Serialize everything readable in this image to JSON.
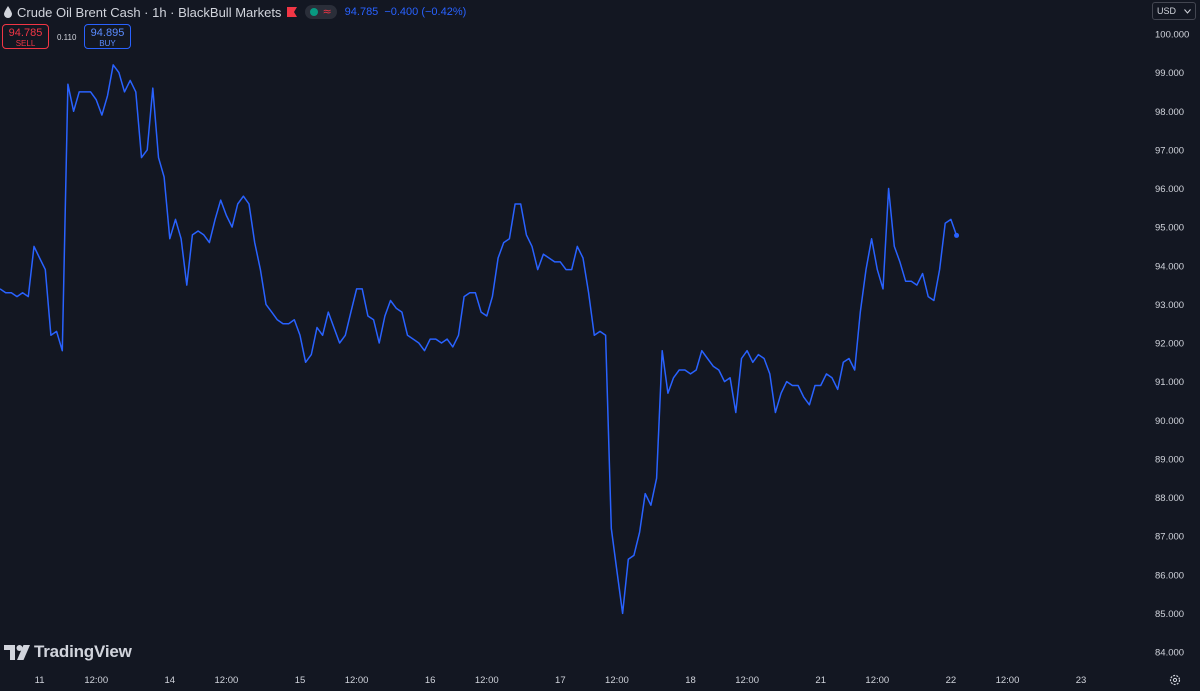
{
  "header": {
    "symbol_title": "Crude Oil Brent Cash · 1h · BlackBull Markets",
    "last_price": "94.785",
    "change": "−0.400 (−0.42%)",
    "icons": [
      "drop-icon",
      "flag-icon",
      "status-dot",
      "wave-icon"
    ]
  },
  "trade": {
    "sell_price": "94.785",
    "sell_label": "SELL",
    "spread": "0.110",
    "buy_price": "94.895",
    "buy_label": "BUY"
  },
  "currency_select": {
    "value": "USD"
  },
  "branding": {
    "logo_text": "TradingView"
  },
  "colors": {
    "background": "#131722",
    "line": "#2962ff",
    "sell": "#f23645",
    "text": "#d1d4dc",
    "axis_text": "#d1d4dc"
  },
  "chart_data": {
    "type": "line",
    "title": "Crude Oil Brent Cash · 1h · BlackBull Markets",
    "xlabel": "",
    "ylabel": "",
    "ylim": [
      83.7,
      100.2
    ],
    "grid": false,
    "y_axis_side": "right",
    "y_ticks": [
      100,
      99,
      98,
      97,
      96,
      95,
      94,
      93,
      92,
      91,
      90,
      89,
      88,
      87,
      86,
      85,
      84
    ],
    "y_tick_labels": [
      "100.000",
      "99.000",
      "98.000",
      "97.000",
      "96.000",
      "95.000",
      "94.000",
      "93.000",
      "92.000",
      "91.000",
      "90.000",
      "89.000",
      "88.000",
      "87.000",
      "86.000",
      "85.000",
      "84.000"
    ],
    "x_ticks": [
      {
        "label": "11",
        "index": 7
      },
      {
        "label": "12:00",
        "index": 17
      },
      {
        "label": "14",
        "index": 30
      },
      {
        "label": "12:00",
        "index": 40
      },
      {
        "label": "15",
        "index": 53
      },
      {
        "label": "12:00",
        "index": 63
      },
      {
        "label": "16",
        "index": 76
      },
      {
        "label": "12:00",
        "index": 86
      },
      {
        "label": "17",
        "index": 99
      },
      {
        "label": "12:00",
        "index": 109
      },
      {
        "label": "18",
        "index": 122
      },
      {
        "label": "12:00",
        "index": 132
      },
      {
        "label": "21",
        "index": 145
      },
      {
        "label": "12:00",
        "index": 155
      },
      {
        "label": "22",
        "index": 168
      },
      {
        "label": "12:00",
        "index": 178
      },
      {
        "label": "23",
        "index": 191
      }
    ],
    "series": [
      {
        "values": [
          93.4,
          93.3,
          93.3,
          93.2,
          93.3,
          93.2,
          94.5,
          94.2,
          93.9,
          92.2,
          92.3,
          91.8,
          98.7,
          98.0,
          98.5,
          98.5,
          98.5,
          98.3,
          97.9,
          98.4,
          99.2,
          99.0,
          98.5,
          98.8,
          98.5,
          96.8,
          97.0,
          98.6,
          96.8,
          96.3,
          94.7,
          95.2,
          94.7,
          93.5,
          94.8,
          94.9,
          94.8,
          94.6,
          95.2,
          95.7,
          95.3,
          95.0,
          95.6,
          95.8,
          95.6,
          94.6,
          93.9,
          93.0,
          92.8,
          92.6,
          92.5,
          92.5,
          92.6,
          92.2,
          91.5,
          91.7,
          92.4,
          92.2,
          92.8,
          92.4,
          92.0,
          92.2,
          92.8,
          93.4,
          93.4,
          92.7,
          92.6,
          92.0,
          92.7,
          93.1,
          92.9,
          92.8,
          92.2,
          92.1,
          92.0,
          91.8,
          92.1,
          92.1,
          92.0,
          92.1,
          91.9,
          92.2,
          93.2,
          93.3,
          93.3,
          92.8,
          92.7,
          93.2,
          94.2,
          94.6,
          94.7,
          95.6,
          95.6,
          94.8,
          94.5,
          93.9,
          94.3,
          94.2,
          94.1,
          94.1,
          93.9,
          93.9,
          94.5,
          94.2,
          93.3,
          92.2,
          92.3,
          92.2,
          87.2,
          86.1,
          85.0,
          86.4,
          86.5,
          87.1,
          88.1,
          87.8,
          88.5,
          91.8,
          90.7,
          91.1,
          91.3,
          91.3,
          91.2,
          91.3,
          91.8,
          91.6,
          91.4,
          91.3,
          91.0,
          91.1,
          90.2,
          91.6,
          91.8,
          91.5,
          91.7,
          91.6,
          91.2,
          90.2,
          90.7,
          91.0,
          90.9,
          90.9,
          90.6,
          90.4,
          90.9,
          90.9,
          91.2,
          91.1,
          90.8,
          91.5,
          91.6,
          91.3,
          92.8,
          93.9,
          94.7,
          93.9,
          93.4,
          96.0,
          94.5,
          94.1,
          93.6,
          93.6,
          93.5,
          93.8,
          93.2,
          93.1,
          93.9,
          95.1,
          95.2,
          94.785
        ]
      }
    ],
    "last_value": 94.785
  }
}
